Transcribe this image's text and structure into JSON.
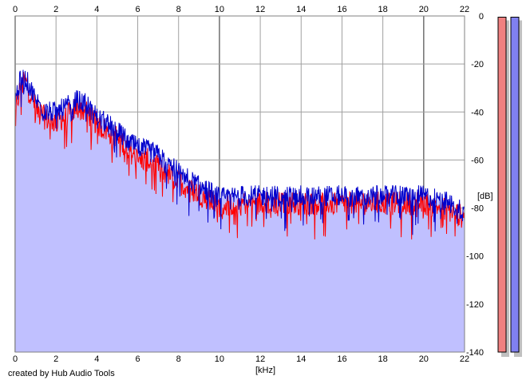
{
  "footer": {
    "credit": "created by Hub Audio Tools"
  },
  "colors": {
    "plot_background": "#ffffff",
    "grid": "#a0a0a0",
    "grid_major": "#707070",
    "fill": "#c0c0ff",
    "left_channel": "#ff0000",
    "right_channel": "#0000cc",
    "meter_left": "#f08080",
    "meter_right": "#8080f0"
  },
  "chart_data": {
    "type": "line",
    "title": "",
    "xlabel": "[kHz]",
    "ylabel": "[dB]",
    "xlim": [
      0,
      22
    ],
    "ylim": [
      -140,
      0
    ],
    "x_ticks": [
      "0",
      "2",
      "4",
      "6",
      "8",
      "10",
      "12",
      "14",
      "16",
      "18",
      "20",
      "22"
    ],
    "y_ticks": [
      "0",
      "-20",
      "-40",
      "-60",
      "-80",
      "-100",
      "-120",
      "-140"
    ],
    "grid": true,
    "x": [
      0,
      0.25,
      0.5,
      0.75,
      1.0,
      1.5,
      2.0,
      2.5,
      3.0,
      3.5,
      4.0,
      4.5,
      5.0,
      5.5,
      6.0,
      6.5,
      7.0,
      7.5,
      8.0,
      8.5,
      9.0,
      9.5,
      10.0,
      11.0,
      12.0,
      13.0,
      14.0,
      15.0,
      16.0,
      17.0,
      18.0,
      19.0,
      20.0,
      21.0,
      21.5,
      22.0
    ],
    "series": [
      {
        "values": [
          -40,
          -30,
          -27,
          -32,
          -38,
          -43,
          -44,
          -42,
          -38,
          -40,
          -45,
          -48,
          -50,
          -55,
          -60,
          -60,
          -63,
          -66,
          -69,
          -72,
          -74,
          -77,
          -79,
          -78,
          -78,
          -78,
          -78,
          -78,
          -78,
          -78,
          -78,
          -78,
          -78,
          -80,
          -82,
          -84
        ]
      },
      {
        "values": [
          -35,
          -27,
          -26,
          -30,
          -35,
          -40,
          -40,
          -38,
          -35,
          -37,
          -42,
          -45,
          -48,
          -52,
          -55,
          -56,
          -58,
          -62,
          -65,
          -68,
          -71,
          -73,
          -76,
          -75,
          -75,
          -75,
          -75,
          -75,
          -75,
          -75,
          -75,
          -75,
          -75,
          -77,
          -79,
          -82
        ]
      }
    ]
  },
  "meters": {
    "left_level": -0.5,
    "right_level": -0.5
  }
}
